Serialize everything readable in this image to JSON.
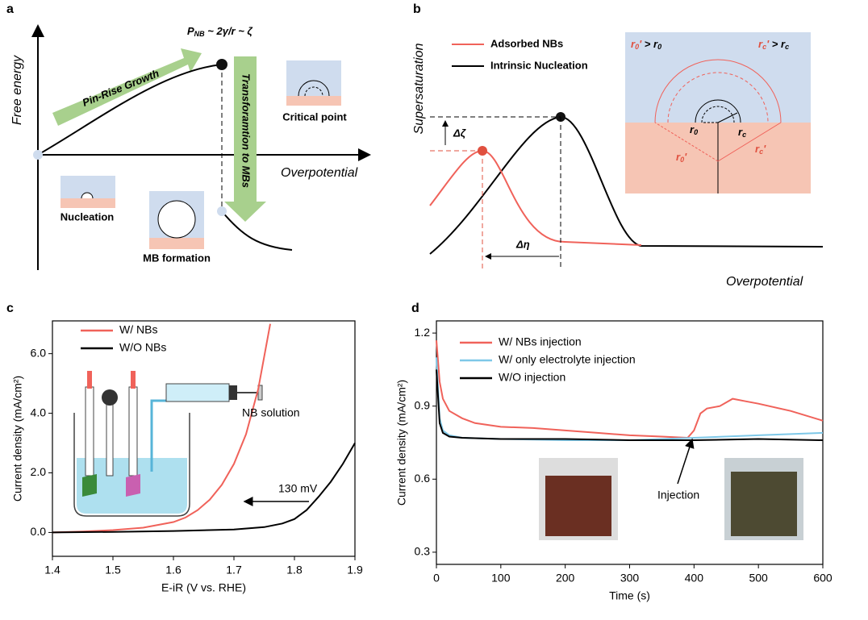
{
  "panel_a": {
    "label": "a",
    "y_axis_label": "Free energy",
    "x_axis_label": "Overpotential",
    "pressure_symbol": "P",
    "pressure_subscript": "NB",
    "pressure_relation": " ~ 2γ/r ~ ζ",
    "growth_arrow": "Pin-Rise Growth",
    "transformation_arrow": "Transforamtion to MBs",
    "critical_point": "Critical point",
    "nucleation": "Nucleation",
    "mb_formation": "MB formation"
  },
  "panel_b": {
    "label": "b",
    "y_axis_label": "Supersaturation",
    "x_axis_label": "Overpotential",
    "legend": [
      "Adsorbed  NBs",
      "Intrinsic Nucleation"
    ],
    "delta_zeta": "Δζ",
    "delta_eta": "Δη",
    "r0": "r",
    "rc": "r",
    "sub0": "0",
    "subc": "c",
    "prime": "'",
    "greater": " > "
  },
  "chart_data": [
    {
      "type": "line",
      "label": "c",
      "xlabel": "E-iR (V vs. RHE)",
      "ylabel": "Current density (mA/cm²)",
      "xlim": [
        1.4,
        1.9
      ],
      "xticks": [
        1.4,
        1.5,
        1.6,
        1.7,
        1.8,
        1.9
      ],
      "ylim": [
        -0.8,
        7.1
      ],
      "yticks": [
        {
          "value": 0,
          "label": "0.0"
        },
        {
          "value": 2,
          "label": "2.0"
        },
        {
          "value": 4,
          "label": "4.0"
        },
        {
          "value": 6,
          "label": "6.0"
        }
      ],
      "legend": "upper left",
      "series": [
        {
          "name": "W/ NBs",
          "color": "#f0625a",
          "x": [
            1.4,
            1.45,
            1.5,
            1.55,
            1.6,
            1.62,
            1.64,
            1.66,
            1.68,
            1.7,
            1.72,
            1.74,
            1.76
          ],
          "values": [
            0,
            0.03,
            0.08,
            0.16,
            0.35,
            0.5,
            0.75,
            1.1,
            1.6,
            2.3,
            3.3,
            4.8,
            7.0
          ]
        },
        {
          "name": "W/O NBs",
          "color": "#000000",
          "x": [
            1.4,
            1.5,
            1.6,
            1.7,
            1.75,
            1.78,
            1.8,
            1.82,
            1.84,
            1.86,
            1.88,
            1.9
          ],
          "values": [
            0,
            0.02,
            0.05,
            0.1,
            0.18,
            0.3,
            0.45,
            0.75,
            1.2,
            1.7,
            2.3,
            3.0
          ]
        }
      ],
      "annotations": [
        "130 mV",
        "NB solution"
      ]
    },
    {
      "type": "line",
      "label": "d",
      "xlabel": "Time (s)",
      "ylabel": "Current density (mA/cm²)",
      "xlim": [
        0,
        600
      ],
      "xticks": [
        0,
        100,
        200,
        300,
        400,
        500,
        600
      ],
      "ylim": [
        0.25,
        1.25
      ],
      "yticks": [
        0.3,
        0.6,
        0.9,
        1.2
      ],
      "legend": "upper left",
      "series": [
        {
          "name": "W/ NBs injection",
          "color": "#f0625a",
          "x": [
            0,
            5,
            10,
            20,
            40,
            60,
            100,
            150,
            200,
            250,
            300,
            350,
            390,
            400,
            410,
            420,
            440,
            460,
            480,
            500,
            550,
            600
          ],
          "values": [
            1.17,
            1.0,
            0.93,
            0.88,
            0.85,
            0.83,
            0.815,
            0.81,
            0.8,
            0.79,
            0.78,
            0.775,
            0.77,
            0.8,
            0.87,
            0.89,
            0.9,
            0.93,
            0.92,
            0.91,
            0.88,
            0.84
          ]
        },
        {
          "name": "W/ only electrolyte injection",
          "color": "#7ec8e8",
          "x": [
            0,
            5,
            10,
            20,
            40,
            100,
            200,
            300,
            400,
            500,
            600
          ],
          "values": [
            1.1,
            0.85,
            0.8,
            0.78,
            0.77,
            0.765,
            0.76,
            0.76,
            0.77,
            0.78,
            0.79
          ]
        },
        {
          "name": "W/O injection",
          "color": "#000000",
          "x": [
            0,
            5,
            10,
            20,
            40,
            100,
            200,
            300,
            400,
            500,
            600
          ],
          "values": [
            1.05,
            0.83,
            0.79,
            0.775,
            0.77,
            0.765,
            0.765,
            0.76,
            0.76,
            0.765,
            0.76
          ]
        }
      ],
      "annotations": [
        "Injection"
      ]
    }
  ]
}
